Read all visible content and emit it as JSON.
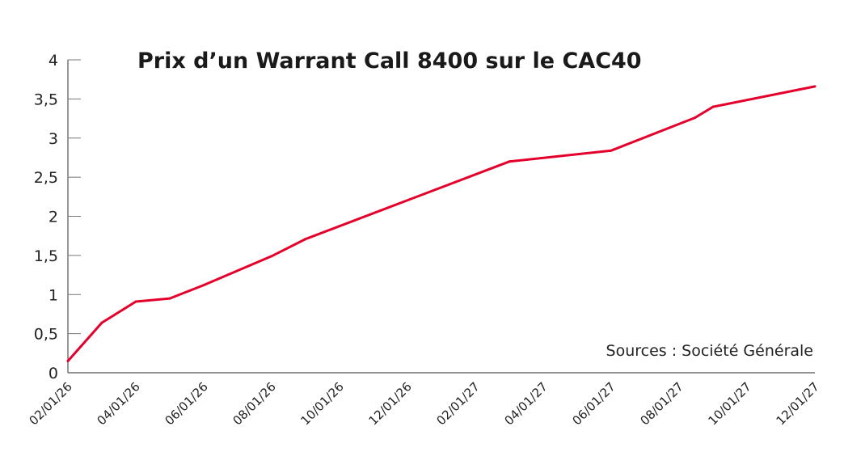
{
  "chart_data": {
    "type": "line",
    "title": "Prix d’un Warrant Call 8400 sur le CAC40",
    "source": "Sources : Société Générale",
    "xlabel": "",
    "ylabel": "",
    "ylim": [
      0,
      4
    ],
    "y_ticks": [
      "0",
      "0,5",
      "1",
      "1,5",
      "2",
      "2,5",
      "3",
      "3,5",
      "4"
    ],
    "x_ticks": [
      "02/01/26",
      "04/01/26",
      "06/01/26",
      "08/01/26",
      "10/01/26",
      "12/01/26",
      "02/01/27",
      "04/01/27",
      "06/01/27",
      "08/01/27",
      "10/01/27",
      "12/01/27"
    ],
    "xlim": [
      "02/01/26",
      "12/01/27"
    ],
    "grid": false,
    "line_color": "#e4002b",
    "series": [
      {
        "x": [
          "02/01/26",
          "03/01/26",
          "04/01/26",
          "05/01/26",
          "06/01/26",
          "08/01/26",
          "09/01/26",
          "03/01/27",
          "06/01/27",
          "08/15/27",
          "09/01/27",
          "12/01/27"
        ],
        "y": [
          0.15,
          0.64,
          0.91,
          0.95,
          1.12,
          1.49,
          1.71,
          2.7,
          2.84,
          3.26,
          3.4,
          3.66
        ]
      }
    ]
  }
}
